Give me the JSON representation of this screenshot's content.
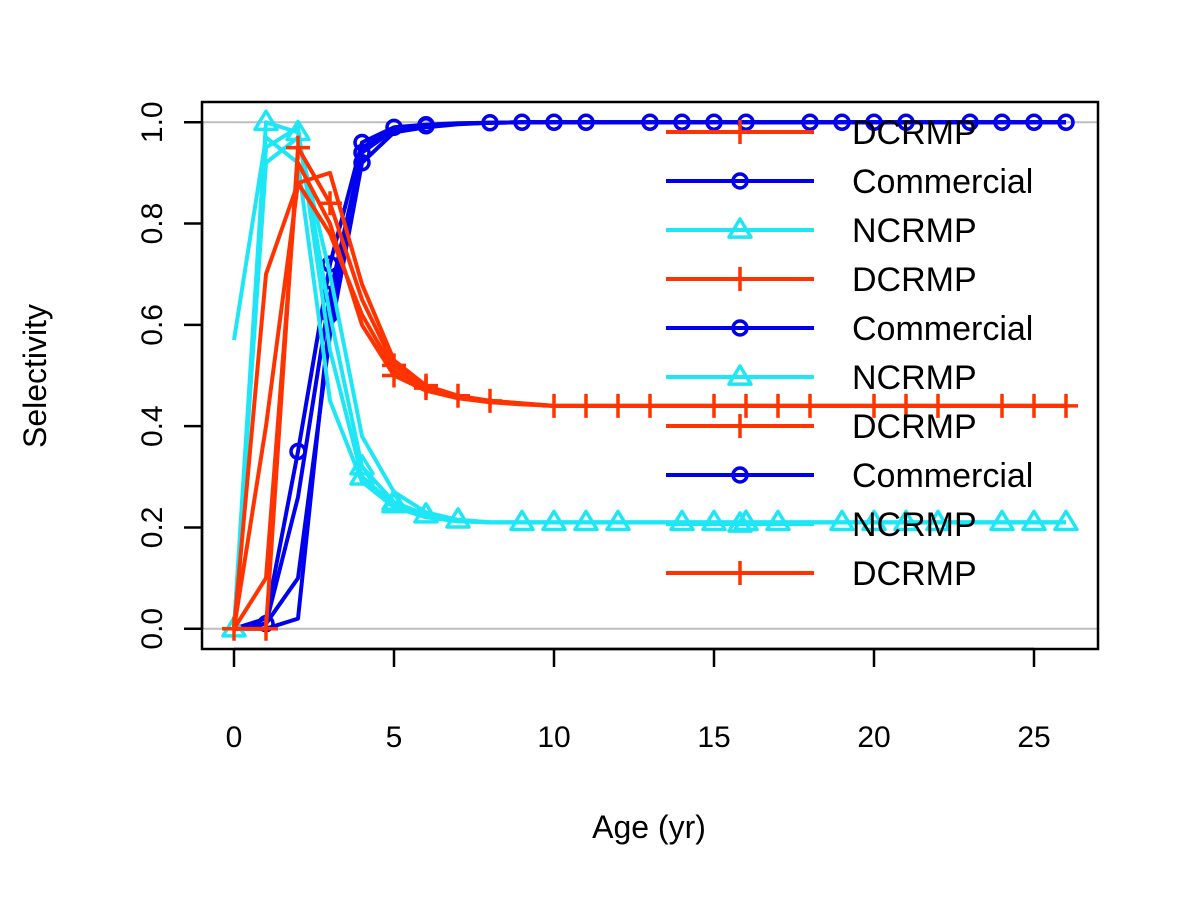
{
  "chart_data": {
    "type": "line",
    "xlabel": "Age (yr)",
    "ylabel": "Selectivity",
    "xlim": [
      -1,
      27
    ],
    "ylim": [
      -0.04,
      1.04
    ],
    "xticks": [
      0,
      5,
      10,
      15,
      20,
      25
    ],
    "yticks": [
      0.0,
      0.2,
      0.4,
      0.6,
      0.8,
      1.0
    ],
    "ytick_labels": [
      "0.0",
      "0.2",
      "0.4",
      "0.6",
      "0.8",
      "1.0"
    ],
    "reference_lines_y": [
      0,
      1
    ],
    "reference_line_color": "#bebebe",
    "legend_position": "top-right",
    "colors": {
      "Commercial": "#0000ee",
      "NCRMP": "#1ee6f5",
      "DCRMP": "#ff3300"
    },
    "markers": {
      "Commercial": "circle",
      "NCRMP": "triangle",
      "DCRMP": "plus"
    },
    "legend_entries": [
      "DCRMP",
      "Commercial",
      "NCRMP",
      "DCRMP",
      "Commercial",
      "NCRMP",
      "DCRMP",
      "Commercial",
      "NCRMP",
      "DCRMP"
    ],
    "series": [
      {
        "name": "Commercial",
        "x": [
          0,
          1,
          2,
          3,
          4,
          5,
          6,
          7,
          8,
          9,
          10,
          11,
          12,
          13,
          14,
          15,
          16,
          17,
          18,
          19,
          20,
          21,
          22,
          23,
          24,
          25,
          26
        ],
        "y": [
          0,
          0.02,
          0.35,
          0.72,
          0.96,
          0.99,
          0.995,
          0.998,
          0.999,
          1,
          1,
          1,
          1,
          1,
          1,
          1,
          1,
          1,
          1,
          1,
          1,
          1,
          1,
          1,
          1,
          1,
          1
        ],
        "markers_at": [
          2,
          3,
          4,
          5,
          6,
          8,
          9,
          10,
          11,
          13,
          14,
          15,
          16,
          18,
          19,
          20,
          21,
          23,
          24,
          25,
          26
        ]
      },
      {
        "name": "Commercial",
        "x": [
          0,
          1,
          2,
          3,
          4,
          5,
          6,
          7,
          8,
          9,
          10,
          11,
          12,
          13,
          14,
          15,
          16,
          17,
          18,
          19,
          20,
          21,
          22,
          23,
          24,
          25,
          26
        ],
        "y": [
          0,
          0.01,
          0.26,
          0.66,
          0.94,
          0.985,
          0.993,
          0.997,
          0.999,
          1,
          1,
          1,
          1,
          1,
          1,
          1,
          1,
          1,
          1,
          1,
          1,
          1,
          1,
          1,
          1,
          1,
          1
        ],
        "markers_at": [
          1,
          3,
          4,
          6
        ]
      },
      {
        "name": "Commercial",
        "x": [
          0,
          1,
          2,
          3,
          4,
          5,
          6,
          7,
          8,
          9,
          10,
          11,
          12,
          13,
          14,
          15,
          16,
          17,
          18,
          19,
          20,
          21,
          22,
          23,
          24,
          25,
          26
        ],
        "y": [
          0,
          0.01,
          0.1,
          0.58,
          0.92,
          0.98,
          0.99,
          0.996,
          0.999,
          1,
          1,
          1,
          1,
          1,
          1,
          1,
          1,
          1,
          1,
          1,
          1,
          1,
          1,
          1,
          1,
          1,
          1
        ],
        "markers_at": [
          4
        ]
      },
      {
        "name": "Commercial",
        "x": [
          0,
          1,
          2,
          3,
          4,
          5,
          6,
          7,
          8,
          9,
          10,
          11,
          12,
          13,
          14,
          15,
          16,
          17,
          18,
          19,
          20,
          21,
          22,
          23,
          24,
          25,
          26
        ],
        "y": [
          0,
          0,
          0.02,
          0.62,
          0.95,
          0.985,
          0.993,
          0.997,
          0.999,
          1,
          1,
          1,
          1,
          1,
          1,
          1,
          1,
          1,
          1,
          1,
          1,
          1,
          1,
          1,
          1,
          1,
          1
        ],
        "markers_at": [
          3
        ]
      },
      {
        "name": "NCRMP",
        "x": [
          0,
          1,
          2,
          3,
          4,
          5,
          6,
          7,
          8,
          9,
          10,
          11,
          12,
          13,
          14,
          15,
          16,
          17,
          18,
          19,
          20,
          21,
          22,
          23,
          24,
          25,
          26
        ],
        "y": [
          0,
          1.0,
          0.98,
          0.62,
          0.32,
          0.25,
          0.225,
          0.215,
          0.21,
          0.21,
          0.21,
          0.21,
          0.21,
          0.21,
          0.21,
          0.21,
          0.21,
          0.21,
          0.21,
          0.21,
          0.21,
          0.21,
          0.21,
          0.21,
          0.21,
          0.21,
          0.21
        ],
        "markers_at": [
          0,
          1,
          2,
          4,
          5,
          6,
          7,
          9,
          10,
          11,
          12,
          14,
          15,
          16,
          17,
          19,
          20,
          21,
          22,
          24,
          25,
          26
        ]
      },
      {
        "name": "NCRMP",
        "x": [
          0,
          1,
          2,
          3,
          4,
          5,
          6,
          7,
          8,
          9,
          10,
          11,
          12,
          13,
          14,
          15,
          16,
          17,
          18,
          19,
          20,
          21,
          22,
          23,
          24,
          25,
          26
        ],
        "y": [
          0.57,
          0.97,
          0.92,
          0.45,
          0.29,
          0.24,
          0.22,
          0.212,
          0.21,
          0.21,
          0.21,
          0.21,
          0.21,
          0.21,
          0.21,
          0.21,
          0.21,
          0.21,
          0.21,
          0.21,
          0.21,
          0.21,
          0.21,
          0.21,
          0.21,
          0.21,
          0.21
        ],
        "markers_at": [
          16
        ]
      },
      {
        "name": "NCRMP",
        "x": [
          0,
          1,
          2,
          3,
          4,
          5,
          6,
          7,
          8,
          9,
          10,
          11,
          12,
          13,
          14,
          15,
          16,
          17,
          18,
          19,
          20,
          21,
          22,
          23,
          24,
          25,
          26
        ],
        "y": [
          0,
          0.95,
          0.99,
          0.55,
          0.3,
          0.245,
          0.222,
          0.213,
          0.21,
          0.21,
          0.21,
          0.21,
          0.21,
          0.21,
          0.21,
          0.21,
          0.21,
          0.21,
          0.21,
          0.21,
          0.21,
          0.21,
          0.21,
          0.21,
          0.21,
          0.21,
          0.21
        ],
        "markers_at": [
          4,
          5
        ]
      },
      {
        "name": "NCRMP",
        "x": [
          0,
          1,
          2,
          3,
          4,
          5,
          6,
          7,
          8,
          9,
          10,
          11,
          12,
          13,
          14,
          15,
          16,
          17,
          18,
          19,
          20,
          21,
          22,
          23,
          24,
          25,
          26
        ],
        "y": [
          0,
          0.92,
          0.97,
          0.7,
          0.38,
          0.27,
          0.23,
          0.215,
          0.21,
          0.21,
          0.21,
          0.21,
          0.21,
          0.21,
          0.21,
          0.21,
          0.21,
          0.21,
          0.21,
          0.21,
          0.21,
          0.21,
          0.21,
          0.21,
          0.21,
          0.21,
          0.21
        ],
        "markers_at": []
      },
      {
        "name": "DCRMP",
        "x": [
          0,
          1,
          2,
          3,
          4,
          5,
          6,
          7,
          8,
          9,
          10,
          11,
          12,
          13,
          14,
          15,
          16,
          17,
          18,
          19,
          20,
          21,
          22,
          23,
          24,
          25,
          26
        ],
        "y": [
          0,
          0,
          0.95,
          0.84,
          0.65,
          0.52,
          0.48,
          0.46,
          0.45,
          0.445,
          0.44,
          0.44,
          0.44,
          0.44,
          0.44,
          0.44,
          0.44,
          0.44,
          0.44,
          0.44,
          0.44,
          0.44,
          0.44,
          0.44,
          0.44,
          0.44,
          0.44
        ],
        "markers_at": [
          0,
          1,
          2,
          3,
          5,
          6,
          7,
          8,
          10,
          11,
          12,
          13,
          15,
          16,
          17,
          18,
          20,
          21,
          22,
          24,
          25,
          26
        ]
      },
      {
        "name": "DCRMP",
        "x": [
          0,
          1,
          2,
          3,
          4,
          5,
          6,
          7,
          8,
          9,
          10,
          11,
          12,
          13,
          14,
          15,
          16,
          17,
          18,
          19,
          20,
          21,
          22,
          23,
          24,
          25,
          26
        ],
        "y": [
          0,
          0.7,
          0.88,
          0.9,
          0.68,
          0.53,
          0.48,
          0.46,
          0.45,
          0.445,
          0.44,
          0.44,
          0.44,
          0.44,
          0.44,
          0.44,
          0.44,
          0.44,
          0.44,
          0.44,
          0.44,
          0.44,
          0.44,
          0.44,
          0.44,
          0.44,
          0.44
        ],
        "markers_at": []
      },
      {
        "name": "DCRMP",
        "x": [
          0,
          1,
          2,
          3,
          4,
          5,
          6,
          7,
          8,
          9,
          10,
          11,
          12,
          13,
          14,
          15,
          16,
          17,
          18,
          19,
          20,
          21,
          22,
          23,
          24,
          25,
          26
        ],
        "y": [
          0,
          0.1,
          0.92,
          0.8,
          0.6,
          0.5,
          0.47,
          0.455,
          0.447,
          0.443,
          0.44,
          0.44,
          0.44,
          0.44,
          0.44,
          0.44,
          0.44,
          0.44,
          0.44,
          0.44,
          0.44,
          0.44,
          0.44,
          0.44,
          0.44,
          0.44,
          0.44
        ],
        "markers_at": [
          5
        ]
      },
      {
        "name": "DCRMP",
        "x": [
          0,
          1,
          2,
          3,
          4,
          5,
          6,
          7,
          8,
          9,
          10,
          11,
          12,
          13,
          14,
          15,
          16,
          17,
          18,
          19,
          20,
          21,
          22,
          23,
          24,
          25,
          26
        ],
        "y": [
          0,
          0.4,
          0.88,
          0.78,
          0.62,
          0.51,
          0.475,
          0.458,
          0.448,
          0.444,
          0.44,
          0.44,
          0.44,
          0.44,
          0.44,
          0.44,
          0.44,
          0.44,
          0.44,
          0.44,
          0.44,
          0.44,
          0.44,
          0.44,
          0.44,
          0.44,
          0.44
        ],
        "markers_at": [
          6
        ]
      }
    ]
  }
}
